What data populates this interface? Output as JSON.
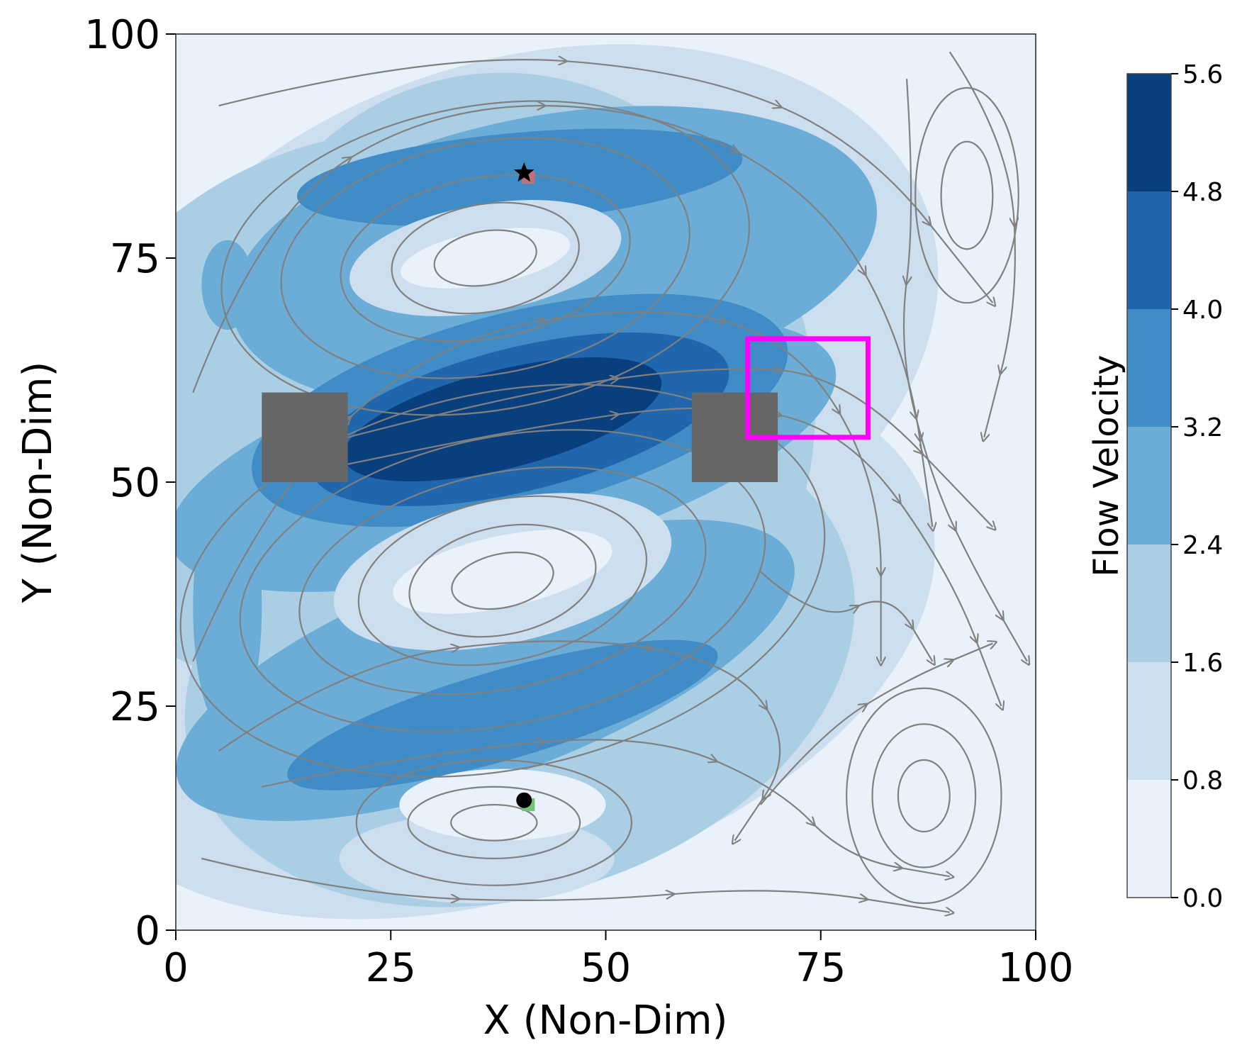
{
  "chart_data": {
    "type": "heatmap",
    "subtype": "filled contour with streamlines",
    "xlabel": "X (Non-Dim)",
    "ylabel": "Y (Non-Dim)",
    "xlim": [
      0,
      100
    ],
    "ylim": [
      0,
      100
    ],
    "xticks": [
      "0",
      "25",
      "50",
      "75",
      "100"
    ],
    "yticks": [
      "0",
      "25",
      "50",
      "75",
      "100"
    ],
    "xtick_values": [
      0,
      25,
      50,
      75,
      100
    ],
    "ytick_values": [
      0,
      25,
      50,
      75,
      100
    ],
    "grid": false,
    "colorbar": {
      "label": "Flow Velocity",
      "range": [
        0.0,
        5.6
      ],
      "levels": [
        0.0,
        0.8,
        1.6,
        2.4,
        3.2,
        4.0,
        4.8,
        5.6
      ],
      "tick_labels": [
        "0.0",
        "0.8",
        "1.6",
        "2.4",
        "3.2",
        "4.0",
        "4.8",
        "5.6"
      ],
      "colors": [
        "#e9f2fb",
        "#cddfef",
        "#aacfe5",
        "#6badd6",
        "#3f8cc6",
        "#1f66ad",
        "#0a3f7e"
      ],
      "placement": "right"
    },
    "obstacles": [
      {
        "x": [
          10,
          20
        ],
        "y": [
          50,
          60
        ],
        "color": "#666666"
      },
      {
        "x": [
          60,
          70
        ],
        "y": [
          50,
          60
        ],
        "color": "#666666"
      }
    ],
    "highlight_box": {
      "x": [
        66.5,
        80.5
      ],
      "y": [
        55,
        66
      ],
      "color": "#ff00ff"
    },
    "markers": [
      {
        "shape": "star",
        "x": 40.5,
        "y": 84.5,
        "color": "#000000"
      },
      {
        "shape": "square",
        "x": 41,
        "y": 84,
        "color": "#c0727a"
      },
      {
        "shape": "circle",
        "x": 40.5,
        "y": 14.5,
        "color": "#000000"
      },
      {
        "shape": "square",
        "x": 41,
        "y": 14,
        "color": "#74c476"
      }
    ],
    "streamline_color": "#808080",
    "contour_blobs": [
      {
        "cx": 0,
        "cy": 50,
        "rx": 6,
        "ry": 9,
        "angle": 0,
        "level": 0
      },
      {
        "cx": 40,
        "cy": 65,
        "rx": 50,
        "ry": 32,
        "angle": 18,
        "level": 1
      },
      {
        "cx": 38,
        "cy": 32,
        "rx": 52,
        "ry": 28,
        "angle": 18,
        "level": 1
      },
      {
        "cx": 22,
        "cy": 58,
        "rx": 38,
        "ry": 30,
        "angle": 25,
        "level": 2
      },
      {
        "cx": 40,
        "cy": 60,
        "rx": 34,
        "ry": 36,
        "angle": 18,
        "level": 2
      },
      {
        "cx": 40,
        "cy": 30,
        "rx": 40,
        "ry": 26,
        "angle": 18,
        "level": 2
      },
      {
        "cx": 44,
        "cy": 75,
        "rx": 38,
        "ry": 16,
        "angle": 10,
        "level": 3
      },
      {
        "cx": 38,
        "cy": 53,
        "rx": 40,
        "ry": 12,
        "angle": 15,
        "level": 3
      },
      {
        "cx": 36,
        "cy": 29,
        "rx": 38,
        "ry": 12,
        "angle": 20,
        "level": 3
      },
      {
        "cx": 6,
        "cy": 36,
        "rx": 4,
        "ry": 14,
        "angle": 0,
        "level": 3
      },
      {
        "cx": 6,
        "cy": 72,
        "rx": 3,
        "ry": 5,
        "angle": 0,
        "level": 3
      },
      {
        "cx": 40,
        "cy": 84,
        "rx": 26,
        "ry": 5,
        "angle": 5,
        "level": 4
      },
      {
        "cx": 40,
        "cy": 58,
        "rx": 32,
        "ry": 11,
        "angle": 14,
        "level": 4
      },
      {
        "cx": 38,
        "cy": 24,
        "rx": 26,
        "ry": 5,
        "angle": 16,
        "level": 4
      },
      {
        "cx": 40,
        "cy": 57,
        "rx": 25,
        "ry": 8,
        "angle": 14,
        "level": 5
      },
      {
        "cx": 38,
        "cy": 57,
        "rx": 19,
        "ry": 5.5,
        "angle": 14,
        "level": 6
      },
      {
        "cx": 36,
        "cy": 75,
        "rx": 16,
        "ry": 6,
        "angle": 10,
        "level": 1
      },
      {
        "cx": 36,
        "cy": 75,
        "rx": 10,
        "ry": 3,
        "angle": 10,
        "level": 0
      },
      {
        "cx": 38,
        "cy": 40,
        "rx": 20,
        "ry": 8,
        "angle": 12,
        "level": 1
      },
      {
        "cx": 38,
        "cy": 40,
        "rx": 13,
        "ry": 4,
        "angle": 12,
        "level": 0
      },
      {
        "cx": 35,
        "cy": 8,
        "rx": 16,
        "ry": 5,
        "angle": 0,
        "level": 1
      },
      {
        "cx": 38,
        "cy": 14,
        "rx": 12,
        "ry": 4,
        "angle": 0,
        "level": 0
      }
    ]
  }
}
